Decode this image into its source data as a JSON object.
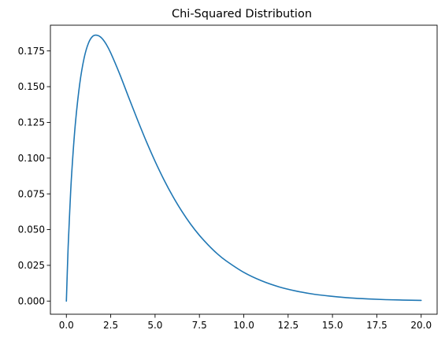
{
  "chart_data": {
    "type": "line",
    "title": "Chi-Squared Distribution",
    "xlabel": "",
    "ylabel": "",
    "xlim": [
      -0.9,
      20.9
    ],
    "ylim": [
      -0.0092,
      0.193
    ],
    "x_ticks": [
      0.0,
      2.5,
      5.0,
      7.5,
      10.0,
      12.5,
      15.0,
      17.5,
      20.0
    ],
    "x_tick_labels": [
      "0.0",
      "2.5",
      "5.0",
      "7.5",
      "10.0",
      "12.5",
      "15.0",
      "17.5",
      "20.0"
    ],
    "y_ticks": [
      0.0,
      0.025,
      0.05,
      0.075,
      0.1,
      0.125,
      0.15,
      0.175
    ],
    "y_tick_labels": [
      "0.000",
      "0.025",
      "0.050",
      "0.075",
      "0.100",
      "0.125",
      "0.150",
      "0.175"
    ],
    "grid": false,
    "color": "#1f77b4",
    "series": [
      {
        "x": [
          0,
          0.1,
          0.2,
          0.3,
          0.5,
          0.75,
          1,
          1.25,
          1.5,
          1.75,
          2,
          2.25,
          2.5,
          3,
          3.5,
          4,
          4.5,
          5,
          5.5,
          6,
          6.5,
          7,
          7.5,
          8,
          8.5,
          9,
          10,
          11,
          12,
          13,
          14,
          15,
          16,
          17,
          18,
          19,
          20
        ],
        "values": [
          0,
          0.0379,
          0.0657,
          0.0893,
          0.1232,
          0.1517,
          0.17,
          0.1806,
          0.1854,
          0.1859,
          0.1839,
          0.1796,
          0.1736,
          0.159,
          0.1429,
          0.1271,
          0.1119,
          0.0978,
          0.0849,
          0.0733,
          0.063,
          0.0539,
          0.046,
          0.0392,
          0.0332,
          0.0282,
          0.0201,
          0.0142,
          0.0099,
          0.0069,
          0.0047,
          0.0033,
          0.0022,
          0.0015,
          0.001,
          0.0007,
          0.0005
        ]
      }
    ]
  }
}
